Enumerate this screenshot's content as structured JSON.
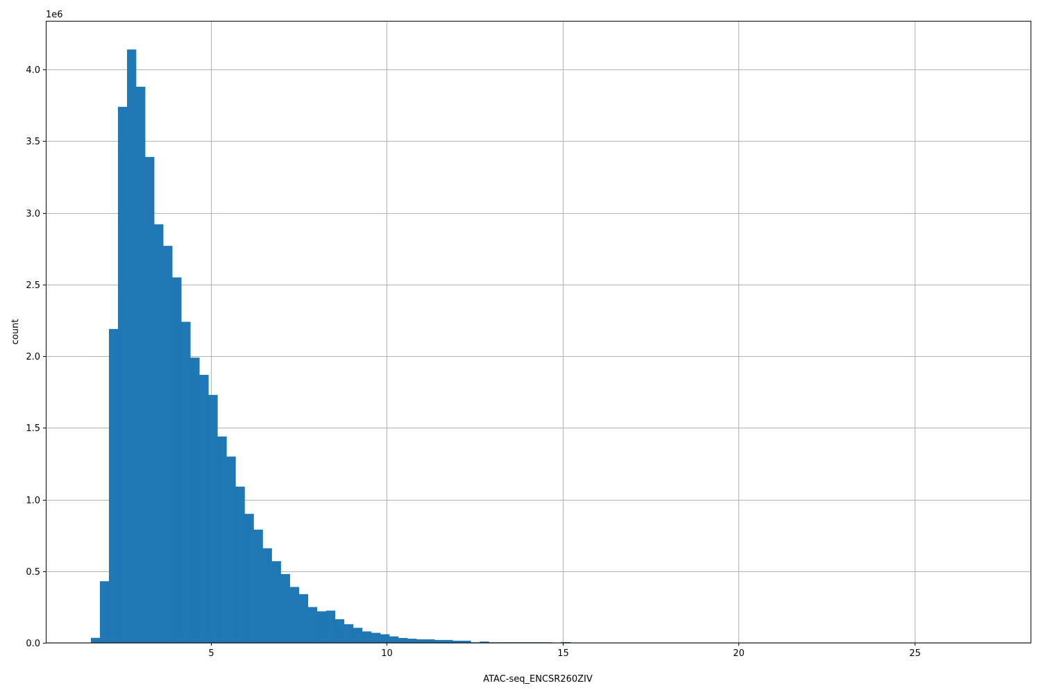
{
  "chart_data": {
    "type": "bar",
    "subtype": "histogram",
    "title": "",
    "xlabel": "ATAC-seq_ENCSR260ZIV",
    "ylabel": "count",
    "y_offset_label": "1e6",
    "xlim": [
      0.31,
      28.3
    ],
    "ylim": [
      0,
      4.34
    ],
    "y_scale_factor": 1000000,
    "grid": true,
    "color": "#1f77b4",
    "bin_start": 1.59,
    "bin_width": 0.2571,
    "x_ticks": [
      5,
      10,
      15,
      20,
      25
    ],
    "x_tick_labels": [
      "5",
      "10",
      "15",
      "20",
      "25"
    ],
    "y_ticks": [
      0,
      0.5,
      1.0,
      1.5,
      2.0,
      2.5,
      3.0,
      3.5,
      4.0
    ],
    "y_tick_labels": [
      "0.0",
      "0.5",
      "1.0",
      "1.5",
      "2.0",
      "2.5",
      "3.0",
      "3.5",
      "4.0"
    ],
    "values": [
      0.035,
      0.43,
      2.19,
      3.74,
      4.14,
      3.88,
      3.39,
      2.92,
      2.77,
      2.55,
      2.24,
      1.99,
      1.87,
      1.73,
      1.44,
      1.3,
      1.09,
      0.9,
      0.79,
      0.66,
      0.57,
      0.48,
      0.39,
      0.34,
      0.25,
      0.22,
      0.225,
      0.165,
      0.13,
      0.105,
      0.08,
      0.07,
      0.06,
      0.045,
      0.034,
      0.029,
      0.025,
      0.025,
      0.02,
      0.02,
      0.015,
      0.015,
      0.004,
      0.009,
      0.004,
      0.004,
      0.004,
      0.004,
      0.004,
      0.004,
      0.004,
      0,
      0.005
    ]
  }
}
